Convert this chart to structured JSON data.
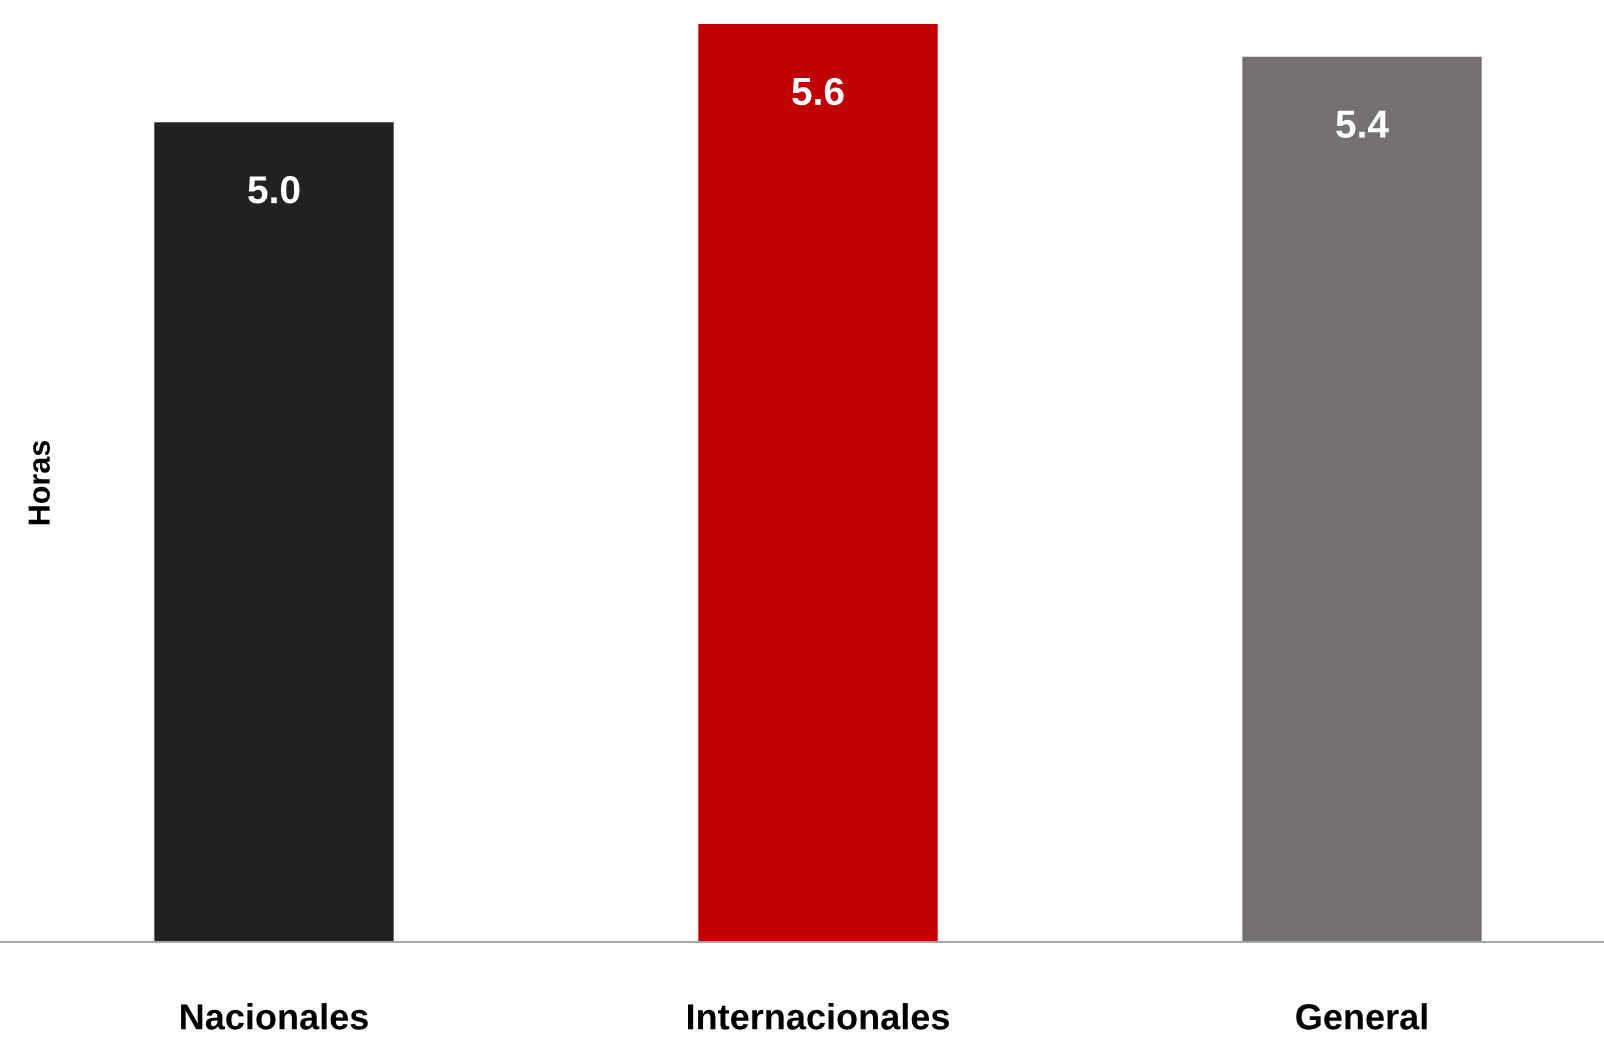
{
  "chart_data": {
    "type": "bar",
    "ylabel": "Horas",
    "categories": [
      "Nacionales",
      "Internacionales",
      "General"
    ],
    "values": [
      5.0,
      5.6,
      5.4
    ],
    "colors": [
      "#222222",
      "#c00000",
      "#767171"
    ],
    "value_labels": [
      "5.0",
      "5.6",
      "5.4"
    ],
    "relative": false,
    "ylim": [
      0,
      5.6
    ],
    "grid": false,
    "legend": false
  }
}
